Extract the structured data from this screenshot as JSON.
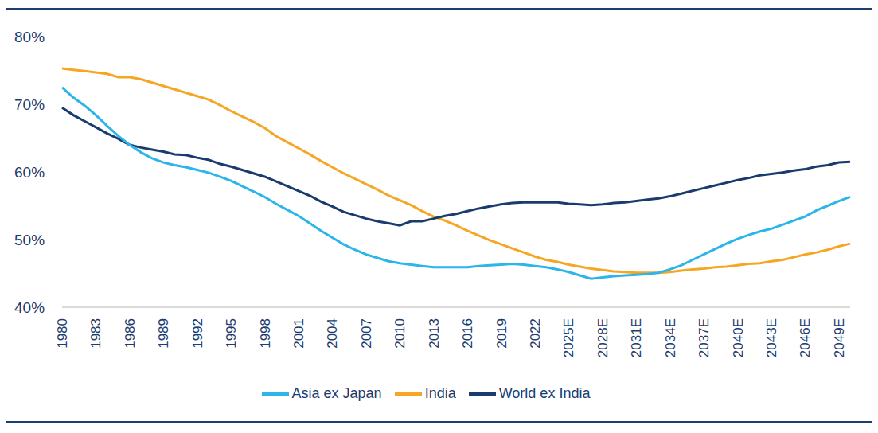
{
  "chart_data": {
    "type": "line",
    "categories": [
      "1980",
      null,
      null,
      "1983",
      null,
      null,
      "1986",
      null,
      null,
      "1989",
      null,
      null,
      "1992",
      null,
      null,
      "1995",
      null,
      null,
      "1998",
      null,
      null,
      "2001",
      null,
      null,
      "2004",
      null,
      null,
      "2007",
      null,
      null,
      "2010",
      null,
      null,
      "2013",
      null,
      null,
      "2016",
      null,
      null,
      "2019",
      null,
      null,
      "2022",
      null,
      null,
      "2025E",
      null,
      null,
      "2028E",
      null,
      null,
      "2031E",
      null,
      null,
      "2034E",
      null,
      null,
      "2037E",
      null,
      null,
      "2040E",
      null,
      null,
      "2043E",
      null,
      null,
      "2046E",
      null,
      null,
      "2049E",
      null
    ],
    "series": [
      {
        "name": "India",
        "color": "#f5a623",
        "values": [
          75.3,
          75.1,
          74.9,
          74.7,
          74.5,
          74.0,
          74.0,
          73.7,
          73.2,
          72.7,
          72.2,
          71.7,
          71.2,
          70.7,
          69.9,
          69.0,
          68.2,
          67.4,
          66.5,
          65.3,
          64.4,
          63.5,
          62.6,
          61.6,
          60.7,
          59.8,
          59.0,
          58.2,
          57.4,
          56.5,
          55.8,
          55.1,
          54.2,
          53.4,
          52.8,
          52.1,
          51.3,
          50.6,
          49.9,
          49.3,
          48.7,
          48.1,
          47.5,
          47.0,
          46.7,
          46.3,
          46.0,
          45.7,
          45.5,
          45.3,
          45.2,
          45.1,
          45.1,
          45.1,
          45.2,
          45.4,
          45.6,
          45.7,
          45.9,
          46.0,
          46.2,
          46.4,
          46.5,
          46.8,
          47.0,
          47.4,
          47.8,
          48.1,
          48.5,
          49.0,
          49.4
        ]
      },
      {
        "name": "World ex India",
        "color": "#193b6e",
        "values": [
          69.5,
          68.4,
          67.5,
          66.6,
          65.7,
          64.9,
          64.0,
          63.6,
          63.3,
          63.0,
          62.6,
          62.5,
          62.1,
          61.8,
          61.2,
          60.8,
          60.3,
          59.8,
          59.3,
          58.6,
          57.9,
          57.2,
          56.5,
          55.6,
          54.9,
          54.1,
          53.6,
          53.1,
          52.7,
          52.4,
          52.1,
          52.7,
          52.7,
          53.1,
          53.5,
          53.8,
          54.2,
          54.6,
          54.9,
          55.2,
          55.4,
          55.5,
          55.5,
          55.5,
          55.5,
          55.3,
          55.2,
          55.1,
          55.2,
          55.4,
          55.5,
          55.7,
          55.9,
          56.1,
          56.4,
          56.8,
          57.2,
          57.6,
          58.0,
          58.4,
          58.8,
          59.1,
          59.5,
          59.7,
          59.9,
          60.2,
          60.4,
          60.8,
          61.0,
          61.4,
          61.5
        ]
      },
      {
        "name": "Asia ex Japan",
        "color": "#2bb5e8",
        "values": [
          72.5,
          71.0,
          69.8,
          68.4,
          66.8,
          65.3,
          64.0,
          62.9,
          62.0,
          61.4,
          61.0,
          60.7,
          60.3,
          59.9,
          59.3,
          58.7,
          57.9,
          57.1,
          56.3,
          55.3,
          54.4,
          53.5,
          52.4,
          51.3,
          50.3,
          49.3,
          48.5,
          47.8,
          47.3,
          46.8,
          46.5,
          46.3,
          46.1,
          45.9,
          45.9,
          45.9,
          45.9,
          46.1,
          46.2,
          46.3,
          46.4,
          46.3,
          46.1,
          45.9,
          45.6,
          45.2,
          44.7,
          44.2,
          44.4,
          44.6,
          44.7,
          44.8,
          44.9,
          45.1,
          45.6,
          46.2,
          47.0,
          47.8,
          48.6,
          49.4,
          50.1,
          50.7,
          51.2,
          51.6,
          52.2,
          52.8,
          53.4,
          54.3,
          55.0,
          55.7,
          56.3
        ]
      }
    ],
    "ylim": [
      40,
      80
    ],
    "yticks": [
      {
        "value": 40,
        "label": "40%"
      },
      {
        "value": 50,
        "label": "50%"
      },
      {
        "value": 60,
        "label": "60%"
      },
      {
        "value": 70,
        "label": "70%"
      },
      {
        "value": 80,
        "label": "80%"
      }
    ],
    "grid": false,
    "legend": "bottom"
  }
}
